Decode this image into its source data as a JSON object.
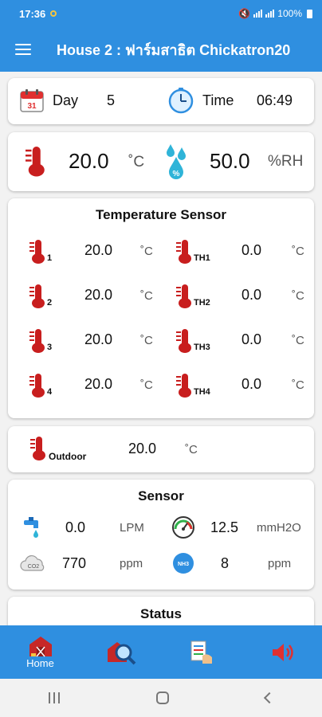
{
  "status_bar": {
    "time": "17:36",
    "battery": "100%"
  },
  "app_bar": {
    "title": "House 2 : ฟาร์มสาธิต Chickatron20"
  },
  "day_time": {
    "day_label": "Day",
    "day_value": "5",
    "time_label": "Time",
    "time_value": "06:49",
    "calendar_number": "31"
  },
  "main_reading": {
    "temperature": "20.0",
    "temperature_unit": "˚C",
    "humidity": "50.0",
    "humidity_unit": "%RH"
  },
  "temperature_sensor": {
    "title": "Temperature Sensor",
    "unit": "˚C",
    "left": [
      {
        "sub": "1",
        "value": "20.0"
      },
      {
        "sub": "2",
        "value": "20.0"
      },
      {
        "sub": "3",
        "value": "20.0"
      },
      {
        "sub": "4",
        "value": "20.0"
      }
    ],
    "right": [
      {
        "sub": "TH1",
        "value": "0.0"
      },
      {
        "sub": "TH2",
        "value": "0.0"
      },
      {
        "sub": "TH3",
        "value": "0.0"
      },
      {
        "sub": "TH4",
        "value": "0.0"
      }
    ]
  },
  "outdoor": {
    "label": "Outdoor",
    "value": "20.0",
    "unit": "˚C"
  },
  "sensor": {
    "title": "Sensor",
    "water_value": "0.0",
    "water_unit": "LPM",
    "pressure_value": "12.5",
    "pressure_unit": "mmH2O",
    "co2_icon_label": "CO2",
    "co2_value": "770",
    "co2_unit": "ppm",
    "nh3_icon_label": "NH3",
    "nh3_value": "8",
    "nh3_unit": "ppm"
  },
  "status": {
    "title": "Status"
  },
  "bottom_nav": {
    "home_label": "Home"
  },
  "colors": {
    "primary": "#2f8fe0",
    "thermometer": "#c81e1e"
  }
}
